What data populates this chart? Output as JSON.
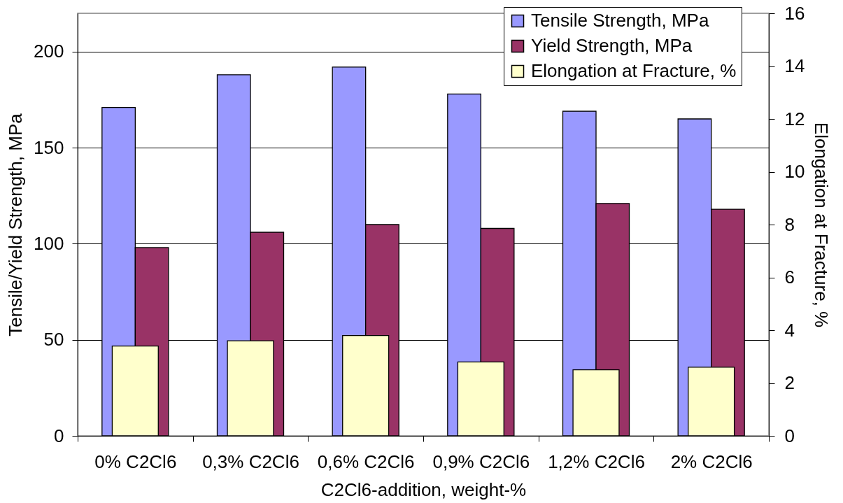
{
  "chart_data": {
    "type": "bar",
    "xlabel": "C2Cl6-addition, weight-%",
    "ylabel": "Tensile/Yield Strength, MPa",
    "y2label": "Elongation at Fracture, %",
    "categories": [
      "0% C2Cl6",
      "0,3% C2Cl6",
      "0,6% C2Cl6",
      "0,9% C2Cl6",
      "1,2% C2Cl6",
      "2% C2Cl6"
    ],
    "series": [
      {
        "name": "Tensile Strength, MPa",
        "color": "#9999ff",
        "values": [
          171,
          188,
          192,
          178,
          169,
          165
        ]
      },
      {
        "name": "Yield Strength, MPa",
        "color": "#993366",
        "values": [
          98,
          106,
          110,
          108,
          121,
          118
        ]
      },
      {
        "name": "Elongation at Fracture, %",
        "color": "#ffffcc",
        "axis": "y2",
        "values": [
          3.4,
          3.6,
          3.8,
          2.8,
          2.5,
          2.6
        ]
      }
    ],
    "ylim": [
      0,
      220
    ],
    "yticks": [
      0,
      50,
      100,
      150,
      200
    ],
    "y2lim": [
      0,
      16
    ],
    "y2ticks": [
      0,
      2,
      4,
      6,
      8,
      10,
      12,
      14,
      16
    ],
    "grid": "y",
    "legend": "top right"
  }
}
